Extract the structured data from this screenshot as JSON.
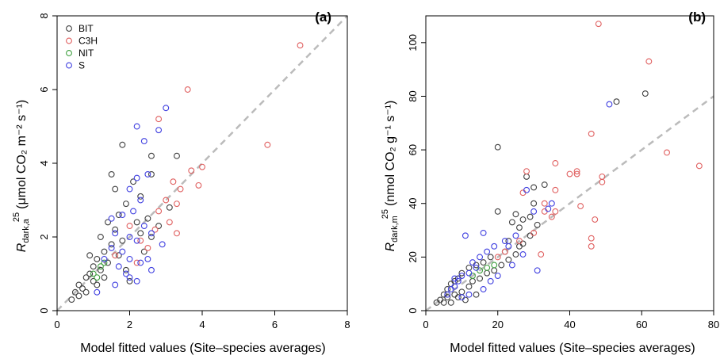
{
  "chart_data": [
    {
      "type": "scatter",
      "panel_label": "(a)",
      "xlabel": "Model fitted values (Site–species averages)",
      "ylabel": "R_dark,a^25 (μmol CO₂ m⁻² s⁻¹)",
      "ylabel_main": "R",
      "ylabel_sub": "dark,a",
      "ylabel_sup": "25",
      "ylabel_unit": "(μmol CO₂ m⁻² s⁻¹)",
      "xlim": [
        0,
        8
      ],
      "ylim": [
        0,
        8
      ],
      "x_ticks": [
        "0",
        "2",
        "4",
        "6",
        "8"
      ],
      "y_ticks": [
        "0",
        "2",
        "4",
        "6",
        "8"
      ],
      "reference_line": {
        "style": "dashed",
        "color": "#bbbbbb",
        "from": [
          0,
          0
        ],
        "to": [
          8,
          8
        ]
      },
      "legend": {
        "placement": "top-left",
        "entries": [
          "BIT",
          "C3H",
          "NIT",
          "S"
        ]
      },
      "series": [
        {
          "name": "BIT",
          "color": "#404040",
          "points": [
            [
              0.4,
              0.3
            ],
            [
              0.5,
              0.5
            ],
            [
              0.6,
              0.7
            ],
            [
              0.7,
              0.6
            ],
            [
              0.8,
              0.9
            ],
            [
              0.9,
              1.0
            ],
            [
              1.0,
              1.2
            ],
            [
              1.0,
              0.8
            ],
            [
              1.1,
              1.4
            ],
            [
              1.2,
              1.1
            ],
            [
              1.3,
              1.6
            ],
            [
              1.4,
              1.3
            ],
            [
              1.5,
              1.8
            ],
            [
              1.6,
              2.2
            ],
            [
              1.7,
              2.6
            ],
            [
              1.8,
              1.9
            ],
            [
              1.5,
              3.7
            ],
            [
              1.6,
              3.3
            ],
            [
              1.8,
              4.5
            ],
            [
              2.1,
              3.5
            ],
            [
              2.3,
              3.1
            ],
            [
              2.6,
              3.7
            ],
            [
              2.6,
              4.2
            ],
            [
              2.5,
              2.5
            ],
            [
              1.9,
              2.9
            ],
            [
              2.2,
              2.4
            ],
            [
              1.7,
              1.5
            ],
            [
              1.9,
              1.1
            ],
            [
              2.0,
              0.8
            ],
            [
              0.6,
              0.4
            ],
            [
              0.8,
              0.5
            ],
            [
              1.1,
              0.7
            ],
            [
              1.3,
              0.9
            ],
            [
              0.9,
              1.5
            ],
            [
              1.2,
              2.0
            ],
            [
              1.4,
              2.4
            ],
            [
              2.3,
              2.1
            ],
            [
              2.6,
              2.0
            ],
            [
              2.8,
              2.3
            ],
            [
              3.1,
              2.8
            ],
            [
              3.3,
              4.2
            ],
            [
              2.4,
              1.6
            ]
          ]
        },
        {
          "name": "C3H",
          "color": "#e06060",
          "points": [
            [
              6.7,
              7.2
            ],
            [
              3.6,
              6.0
            ],
            [
              2.8,
              5.2
            ],
            [
              4.0,
              3.9
            ],
            [
              3.7,
              3.8
            ],
            [
              5.8,
              4.5
            ],
            [
              3.2,
              3.5
            ],
            [
              3.0,
              3.0
            ],
            [
              2.8,
              2.7
            ],
            [
              3.1,
              2.4
            ],
            [
              3.3,
              2.1
            ],
            [
              3.4,
              3.3
            ],
            [
              3.9,
              3.4
            ],
            [
              3.3,
              2.9
            ],
            [
              2.7,
              2.2
            ],
            [
              2.3,
              1.9
            ],
            [
              2.0,
              2.3
            ],
            [
              2.5,
              1.7
            ],
            [
              1.6,
              1.5
            ],
            [
              2.2,
              1.3
            ]
          ]
        },
        {
          "name": "NIT",
          "color": "#40a040",
          "points": [
            [
              1.0,
              1.0
            ],
            [
              1.1,
              0.9
            ],
            [
              1.2,
              1.2
            ],
            [
              1.3,
              1.3
            ]
          ]
        },
        {
          "name": "S",
          "color": "#4040e0",
          "points": [
            [
              3.0,
              5.5
            ],
            [
              2.8,
              4.9
            ],
            [
              2.2,
              5.0
            ],
            [
              2.4,
              4.6
            ],
            [
              2.5,
              3.7
            ],
            [
              2.2,
              3.6
            ],
            [
              2.0,
              3.3
            ],
            [
              2.3,
              3.0
            ],
            [
              2.1,
              2.7
            ],
            [
              1.8,
              2.6
            ],
            [
              2.4,
              2.3
            ],
            [
              2.0,
              2.0
            ],
            [
              2.6,
              2.1
            ],
            [
              2.2,
              1.9
            ],
            [
              1.6,
              2.1
            ],
            [
              1.5,
              1.7
            ],
            [
              1.8,
              1.6
            ],
            [
              2.0,
              1.4
            ],
            [
              1.7,
              1.2
            ],
            [
              2.3,
              1.3
            ],
            [
              2.5,
              1.4
            ],
            [
              2.6,
              1.1
            ],
            [
              2.0,
              0.9
            ],
            [
              1.3,
              1.4
            ],
            [
              1.1,
              0.5
            ],
            [
              1.5,
              2.5
            ],
            [
              2.9,
              1.8
            ],
            [
              1.9,
              1.0
            ],
            [
              1.6,
              0.7
            ],
            [
              2.2,
              0.8
            ]
          ]
        }
      ]
    },
    {
      "type": "scatter",
      "panel_label": "(b)",
      "xlabel": "Model fitted values (Site–species averages)",
      "ylabel": "R_dark,m^25 (nmol CO₂ g⁻¹ s⁻¹)",
      "ylabel_main": "R",
      "ylabel_sub": "dark,m",
      "ylabel_sup": "25",
      "ylabel_unit": "(nmol CO₂ g⁻¹ s⁻¹)",
      "xlim": [
        0,
        80
      ],
      "ylim": [
        0,
        110
      ],
      "x_ticks": [
        "0",
        "20",
        "40",
        "60",
        "80"
      ],
      "y_ticks": [
        "0",
        "20",
        "40",
        "60",
        "80",
        "100"
      ],
      "reference_line": {
        "style": "dashed",
        "color": "#bbbbbb",
        "from": [
          0,
          0
        ],
        "to": [
          80,
          80
        ]
      },
      "series": [
        {
          "name": "BIT",
          "color": "#404040",
          "points": [
            [
              61,
              81
            ],
            [
              53,
              78
            ],
            [
              20,
              61
            ],
            [
              30,
              46
            ],
            [
              33,
              47
            ],
            [
              28,
              50
            ],
            [
              20,
              37
            ],
            [
              25,
              36
            ],
            [
              27,
              34
            ],
            [
              29,
              35
            ],
            [
              24,
              33
            ],
            [
              31,
              32
            ],
            [
              26,
              31
            ],
            [
              27,
              25
            ],
            [
              29,
              28
            ],
            [
              26,
              24
            ],
            [
              22,
              22
            ],
            [
              18,
              20
            ],
            [
              16,
              18
            ],
            [
              14,
              17
            ],
            [
              12,
              16
            ],
            [
              10,
              14
            ],
            [
              9,
              12
            ],
            [
              8,
              11
            ],
            [
              7,
              10
            ],
            [
              6,
              8
            ],
            [
              5,
              6
            ],
            [
              4,
              4
            ],
            [
              3,
              3
            ],
            [
              5,
              3
            ],
            [
              6,
              5
            ],
            [
              8,
              6
            ],
            [
              10,
              7
            ],
            [
              12,
              9
            ],
            [
              13,
              11
            ],
            [
              15,
              12
            ],
            [
              17,
              14
            ],
            [
              19,
              15
            ],
            [
              21,
              17
            ],
            [
              23,
              19
            ],
            [
              25,
              21
            ],
            [
              9,
              5
            ],
            [
              11,
              4
            ],
            [
              14,
              6
            ],
            [
              7,
              3
            ],
            [
              30,
              40
            ],
            [
              23,
              26
            ]
          ]
        },
        {
          "name": "C3H",
          "color": "#e06060",
          "points": [
            [
              48,
              107
            ],
            [
              62,
              93
            ],
            [
              46,
              66
            ],
            [
              67,
              59
            ],
            [
              76,
              54
            ],
            [
              49,
              50
            ],
            [
              42,
              52
            ],
            [
              42,
              51
            ],
            [
              36,
              55
            ],
            [
              36,
              45
            ],
            [
              43,
              39
            ],
            [
              33,
              40
            ],
            [
              28,
              52
            ],
            [
              27,
              44
            ],
            [
              33,
              37
            ],
            [
              36,
              37
            ],
            [
              35,
              35
            ],
            [
              47,
              34
            ],
            [
              46,
              27
            ],
            [
              46,
              24
            ],
            [
              22,
              22
            ],
            [
              26,
              26
            ],
            [
              20,
              20
            ],
            [
              32,
              21
            ],
            [
              49,
              48
            ],
            [
              40,
              51
            ],
            [
              30,
              29
            ]
          ]
        },
        {
          "name": "NIT",
          "color": "#40a040",
          "points": [
            [
              15,
              15
            ],
            [
              17,
              16
            ],
            [
              19,
              17
            ],
            [
              13,
              13
            ]
          ]
        },
        {
          "name": "S",
          "color": "#4040e0",
          "points": [
            [
              51,
              77
            ],
            [
              28,
              45
            ],
            [
              35,
              40
            ],
            [
              30,
              37
            ],
            [
              16,
              29
            ],
            [
              11,
              28
            ],
            [
              22,
              26
            ],
            [
              19,
              24
            ],
            [
              17,
              22
            ],
            [
              15,
              20
            ],
            [
              13,
              18
            ],
            [
              14,
              16
            ],
            [
              12,
              14
            ],
            [
              10,
              13
            ],
            [
              9,
              11
            ],
            [
              8,
              9
            ],
            [
              7,
              8
            ],
            [
              6,
              6
            ],
            [
              10,
              5
            ],
            [
              12,
              6
            ],
            [
              16,
              8
            ],
            [
              18,
              11
            ],
            [
              20,
              13
            ],
            [
              24,
              17
            ],
            [
              31,
              15
            ],
            [
              27,
              21
            ],
            [
              23,
              24
            ],
            [
              25,
              28
            ],
            [
              34,
              38
            ],
            [
              8,
              12
            ]
          ]
        }
      ]
    }
  ]
}
